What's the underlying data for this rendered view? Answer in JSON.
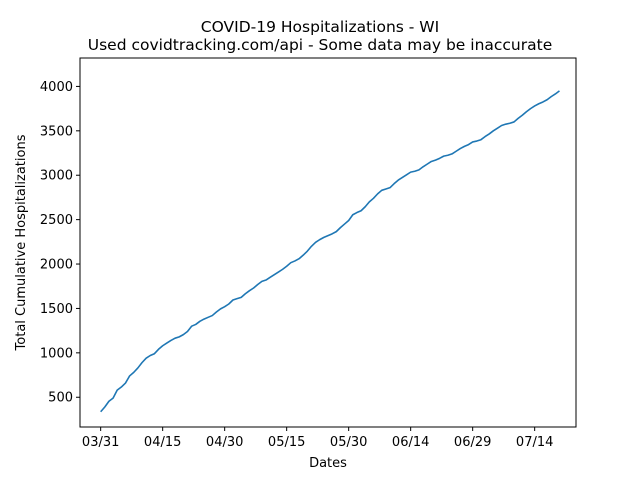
{
  "chart_data": {
    "type": "line",
    "title": "COVID-19 Hospitalizations - WI",
    "subtitle": "Used covidtracking.com/api - Some data may be inaccurate",
    "xlabel": "Dates",
    "ylabel": "Total Cumulative Hospitalizations",
    "x_start": "03/31",
    "x_tick_labels": [
      "03/31",
      "04/15",
      "04/30",
      "05/15",
      "05/30",
      "06/14",
      "06/29",
      "07/14"
    ],
    "y_ticks": [
      500,
      1000,
      1500,
      2000,
      2500,
      3000,
      3500,
      4000
    ],
    "xlim": [
      "03/26",
      "07/24"
    ],
    "ylim": [
      165,
      4320
    ],
    "grid": false,
    "line_color": "#1f77b4",
    "series": [
      {
        "x": [
          "03/31",
          "04/01",
          "04/02",
          "04/03",
          "04/04",
          "04/05",
          "04/06",
          "04/07",
          "04/08",
          "04/09",
          "04/10",
          "04/11",
          "04/12",
          "04/13",
          "04/14",
          "04/15",
          "04/16",
          "04/17",
          "04/18",
          "04/19",
          "04/20",
          "04/21",
          "04/22",
          "04/23",
          "04/24",
          "04/25",
          "04/26",
          "04/27",
          "04/28",
          "04/29",
          "04/30",
          "05/01",
          "05/02",
          "05/03",
          "05/04",
          "05/05",
          "05/06",
          "05/07",
          "05/08",
          "05/09",
          "05/10",
          "05/11",
          "05/12",
          "05/13",
          "05/14",
          "05/15",
          "05/16",
          "05/17",
          "05/18",
          "05/19",
          "05/20",
          "05/21",
          "05/22",
          "05/23",
          "05/24",
          "05/25",
          "05/26",
          "05/27",
          "05/28",
          "05/29",
          "05/30",
          "05/31",
          "06/01",
          "06/02",
          "06/03",
          "06/04",
          "06/05",
          "06/06",
          "06/07",
          "06/08",
          "06/09",
          "06/10",
          "06/11",
          "06/12",
          "06/13",
          "06/14",
          "06/15",
          "06/16",
          "06/17",
          "06/18",
          "06/19",
          "06/20",
          "06/21",
          "06/22",
          "06/23",
          "06/24",
          "06/25",
          "06/26",
          "06/27",
          "06/28",
          "06/29",
          "06/30",
          "07/01",
          "07/02",
          "07/03",
          "07/04",
          "07/05",
          "07/06",
          "07/07",
          "07/08",
          "07/09",
          "07/10",
          "07/11",
          "07/12",
          "07/13",
          "07/14",
          "07/15",
          "07/16",
          "07/17",
          "07/18",
          "07/19",
          "07/20"
        ],
        "values": [
          337,
          390,
          455,
          490,
          580,
          615,
          660,
          740,
          780,
          830,
          890,
          940,
          970,
          990,
          1040,
          1080,
          1110,
          1140,
          1165,
          1180,
          1205,
          1240,
          1300,
          1320,
          1355,
          1380,
          1400,
          1420,
          1460,
          1495,
          1520,
          1550,
          1595,
          1610,
          1625,
          1665,
          1700,
          1730,
          1770,
          1805,
          1820,
          1850,
          1880,
          1910,
          1940,
          1975,
          2015,
          2035,
          2060,
          2100,
          2145,
          2200,
          2245,
          2275,
          2300,
          2320,
          2340,
          2365,
          2410,
          2450,
          2490,
          2555,
          2580,
          2600,
          2645,
          2700,
          2740,
          2790,
          2830,
          2845,
          2860,
          2905,
          2945,
          2975,
          3005,
          3035,
          3045,
          3060,
          3095,
          3125,
          3155,
          3170,
          3190,
          3215,
          3225,
          3240,
          3270,
          3300,
          3325,
          3345,
          3375,
          3385,
          3400,
          3435,
          3465,
          3500,
          3530,
          3560,
          3575,
          3585,
          3600,
          3640,
          3675,
          3715,
          3750,
          3780,
          3805,
          3825,
          3850,
          3885,
          3915,
          3950
        ]
      }
    ]
  }
}
